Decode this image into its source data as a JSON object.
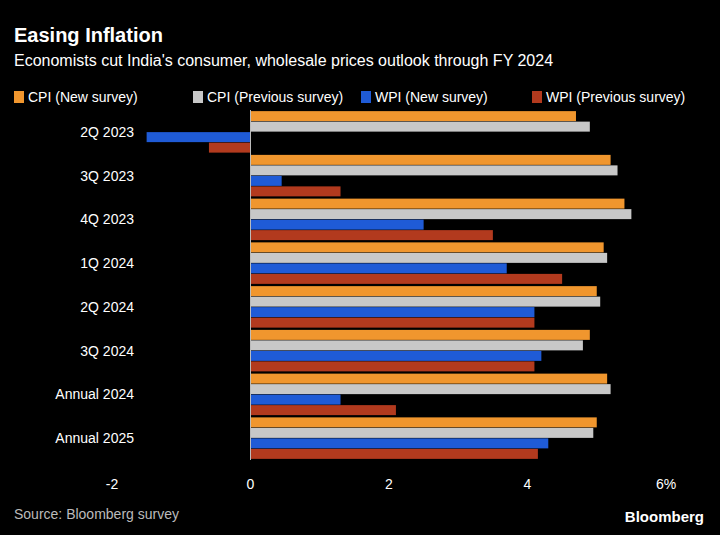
{
  "chart_data": {
    "type": "bar",
    "orientation": "horizontal",
    "title": "Easing Inflation",
    "subtitle": "Economists cut India's consumer, wholesale prices outlook through FY 2024",
    "categories": [
      "2Q 2023",
      "3Q 2023",
      "4Q 2023",
      "1Q 2024",
      "2Q 2024",
      "3Q 2024",
      "Annual 2024",
      "Annual 2025"
    ],
    "series": [
      {
        "name": "CPI (New survey)",
        "color": "#f0962e",
        "values": [
          4.7,
          5.2,
          5.4,
          5.1,
          5.0,
          4.9,
          5.15,
          5.0
        ]
      },
      {
        "name": "CPI (Previous survey)",
        "color": "#c8c8c8",
        "values": [
          4.9,
          5.3,
          5.5,
          5.15,
          5.05,
          4.8,
          5.2,
          4.95
        ]
      },
      {
        "name": "WPI (New survey)",
        "color": "#1f5bd6",
        "values": [
          -1.5,
          0.45,
          2.5,
          3.7,
          4.1,
          4.2,
          1.3,
          4.3
        ]
      },
      {
        "name": "WPI (Previous survey)",
        "color": "#b23a1e",
        "values": [
          -0.6,
          1.3,
          3.5,
          4.5,
          4.1,
          4.1,
          2.1,
          4.15
        ]
      }
    ],
    "xlim": [
      -2,
      6
    ],
    "xticks": [
      -2,
      0,
      2,
      4,
      {
        "value": 6,
        "label": "6%"
      }
    ],
    "grid": false,
    "legend": "top",
    "source": "Source: Bloomberg survey",
    "credit": "Bloomberg"
  }
}
